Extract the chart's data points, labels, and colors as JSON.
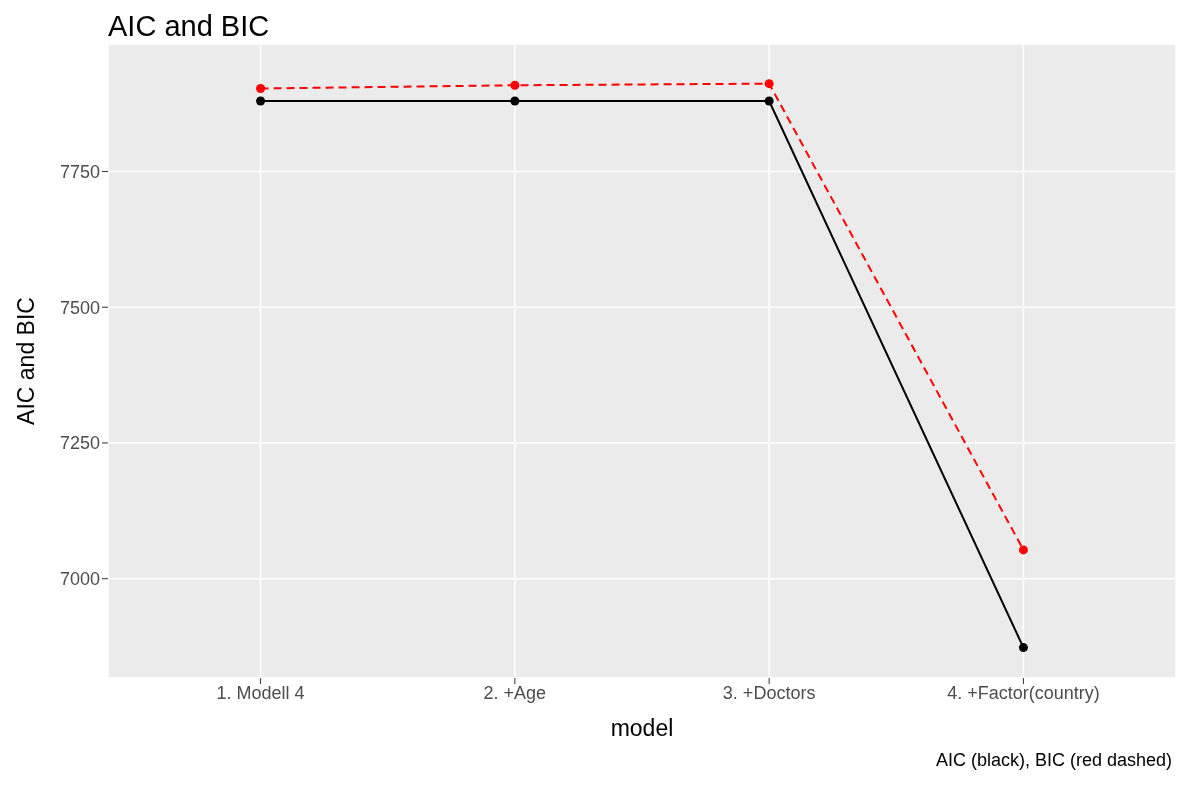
{
  "chart_data": {
    "type": "line",
    "title": "AIC and BIC",
    "xlabel": "model",
    "ylabel": "AIC and BIC",
    "categories": [
      "1. Modell 4",
      "2. +Age",
      "3. +Doctors",
      "4. +Factor(country)"
    ],
    "series": [
      {
        "color": "#000000",
        "line_style": "solid",
        "values": [
          7880,
          7880,
          7880,
          6873
        ]
      },
      {
        "color": "#ff0000",
        "line_style": "dashed",
        "values": [
          7903,
          7909,
          7912,
          7053
        ]
      }
    ],
    "ylim": [
      6817,
      7985
    ],
    "yticks": [
      7000,
      7250,
      7500,
      7750
    ],
    "grid": true,
    "legend": false,
    "marker": "circle",
    "annotations": [
      "AIC (black), BIC (red dashed)"
    ]
  }
}
